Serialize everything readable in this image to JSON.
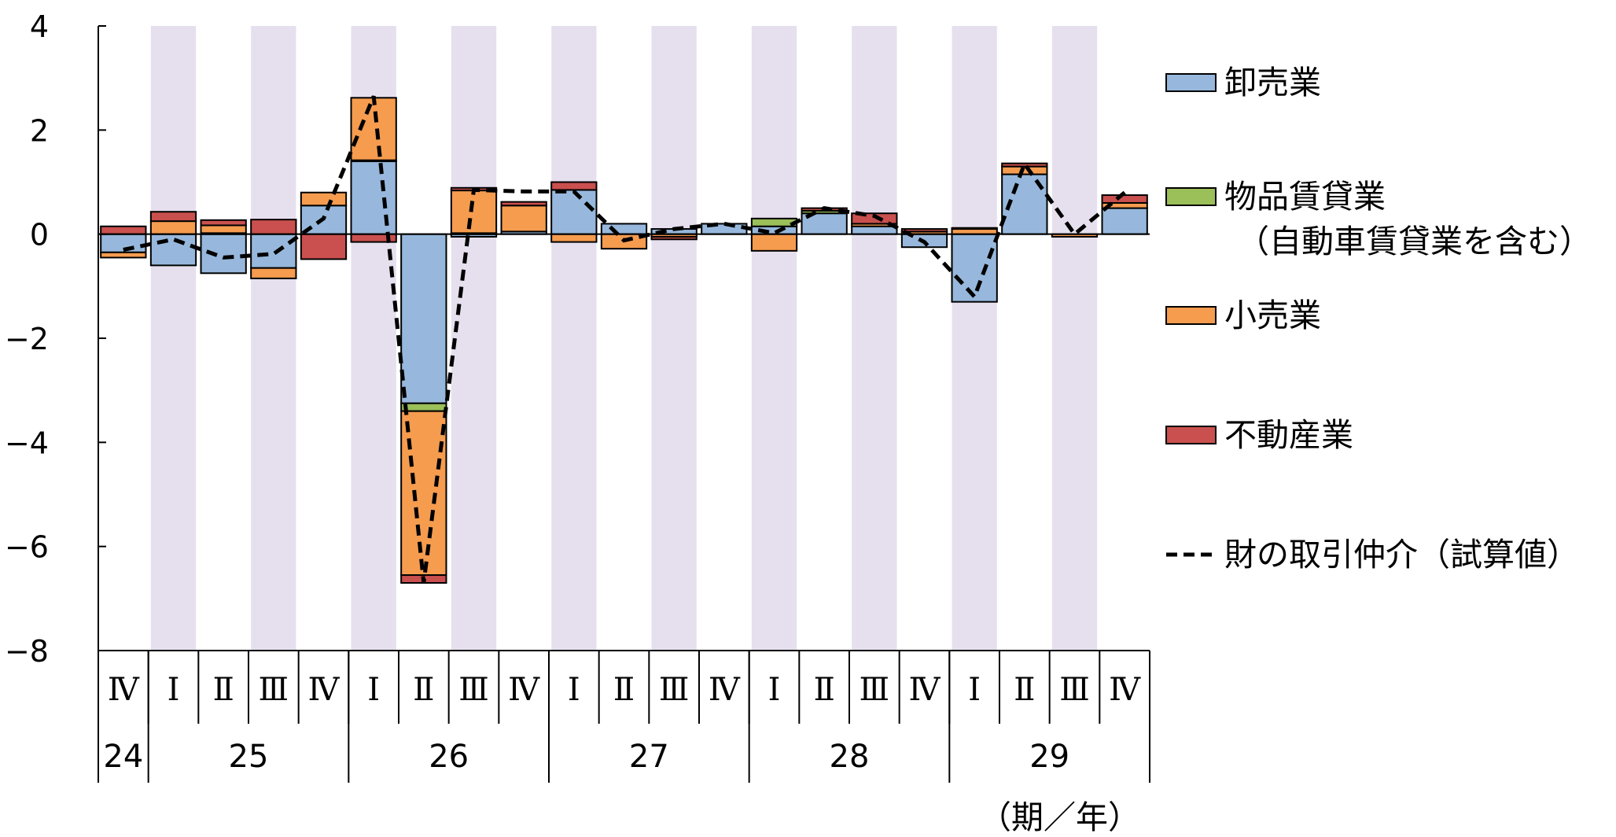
{
  "chart_data": {
    "type": "bar",
    "stacked": true,
    "x_unit_label": "（期／年）",
    "ylim": [
      -8,
      4
    ],
    "y_ticks": [
      "4",
      "2",
      "0",
      "−2",
      "−4",
      "−6",
      "−8"
    ],
    "y_tick_values": [
      4,
      2,
      0,
      -2,
      -4,
      -6,
      -8
    ],
    "quarters": [
      "Ⅳ",
      "Ⅰ",
      "Ⅱ",
      "Ⅲ",
      "Ⅳ",
      "Ⅰ",
      "Ⅱ",
      "Ⅲ",
      "Ⅳ",
      "Ⅰ",
      "Ⅱ",
      "Ⅲ",
      "Ⅳ",
      "Ⅰ",
      "Ⅱ",
      "Ⅲ",
      "Ⅳ",
      "Ⅰ",
      "Ⅱ",
      "Ⅲ",
      "Ⅳ"
    ],
    "years": [
      {
        "label": "24",
        "start": 0,
        "count": 1
      },
      {
        "label": "25",
        "start": 1,
        "count": 4
      },
      {
        "label": "26",
        "start": 5,
        "count": 4
      },
      {
        "label": "27",
        "start": 9,
        "count": 4
      },
      {
        "label": "28",
        "start": 13,
        "count": 4
      },
      {
        "label": "29",
        "start": 17,
        "count": 4
      }
    ],
    "shaded_quarter_indices": [
      1,
      3,
      5,
      7,
      9,
      11,
      13,
      15,
      17,
      19
    ],
    "shade_color": "#e6e0ee",
    "series": [
      {
        "name": "卸売業",
        "color": "#97b8dc",
        "values": [
          -0.35,
          -0.6,
          -0.75,
          -0.65,
          0.55,
          1.4,
          -3.25,
          -0.05,
          0.05,
          0.85,
          0.2,
          0.1,
          0.2,
          0.15,
          0.4,
          0.15,
          -0.25,
          -1.3,
          1.15,
          0.0,
          0.5
        ]
      },
      {
        "name": "物品賃貸業",
        "color": "#9bbf59",
        "extra_label": "（自動車賃貸業を含む）",
        "values": [
          0.0,
          0.0,
          0.02,
          0.0,
          0.0,
          0.02,
          -0.15,
          0.02,
          0.0,
          0.0,
          0.0,
          0.0,
          0.0,
          0.15,
          0.05,
          0.0,
          0.0,
          0.0,
          0.0,
          0.0,
          0.0
        ]
      },
      {
        "name": "小売業",
        "color": "#f59c4f",
        "values": [
          -0.1,
          0.25,
          0.15,
          -0.2,
          0.25,
          1.2,
          -3.15,
          0.82,
          0.5,
          -0.15,
          -0.28,
          -0.05,
          0.0,
          -0.32,
          0.0,
          0.05,
          0.05,
          0.1,
          0.15,
          -0.05,
          0.1
        ]
      },
      {
        "name": "不動産業",
        "color": "#c9504e",
        "values": [
          0.15,
          0.18,
          0.1,
          0.28,
          -0.48,
          -0.15,
          -0.15,
          0.05,
          0.07,
          0.15,
          0.0,
          -0.05,
          0.0,
          0.0,
          0.05,
          0.2,
          0.05,
          0.02,
          0.06,
          0.0,
          0.15
        ]
      },
      {
        "name": "財の取引仲介（試算値）",
        "type": "line",
        "dash": true,
        "color": "#000000",
        "values": [
          -0.3,
          -0.1,
          -0.45,
          -0.38,
          0.3,
          2.65,
          -6.7,
          0.85,
          0.82,
          0.82,
          -0.12,
          0.1,
          0.2,
          0.02,
          0.5,
          0.35,
          -0.15,
          -1.2,
          1.35,
          0.0,
          0.8
        ]
      }
    ],
    "legend_position": "right",
    "grid": false
  }
}
